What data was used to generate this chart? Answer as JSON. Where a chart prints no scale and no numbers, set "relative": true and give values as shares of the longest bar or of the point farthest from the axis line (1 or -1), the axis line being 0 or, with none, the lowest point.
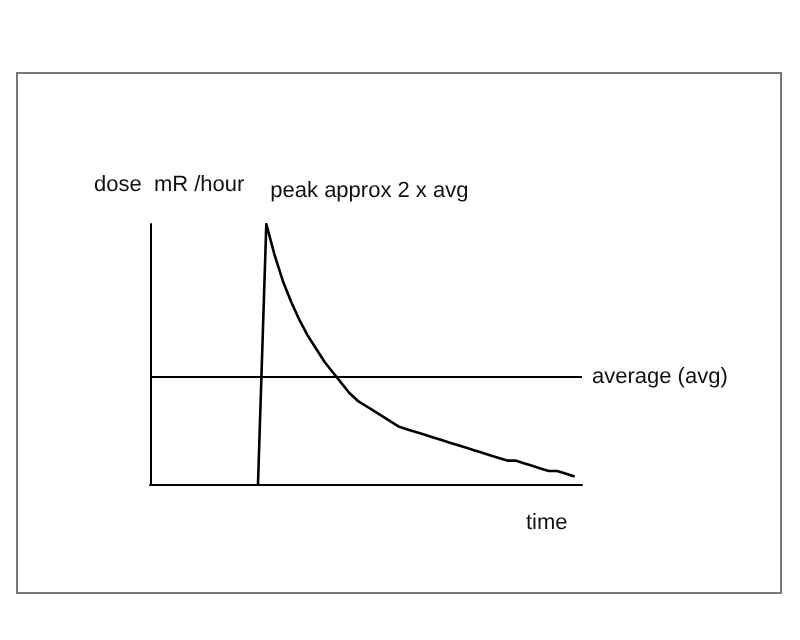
{
  "chart_data": {
    "type": "line",
    "relative": true,
    "xlabel": "time",
    "ylabel": "dose  mR /hour",
    "categories": [
      null,
      null,
      null,
      null,
      null,
      null,
      null,
      null,
      null,
      null,
      null,
      null,
      null,
      null,
      null,
      null,
      null,
      null,
      null,
      null,
      null,
      null,
      null,
      null,
      null,
      null,
      null,
      null,
      null,
      null,
      null,
      null,
      null,
      null,
      null,
      null,
      null,
      null,
      null,
      null,
      null,
      null,
      null,
      null,
      null,
      null,
      null,
      null,
      null,
      null,
      null,
      null,
      null
    ],
    "series": [
      {
        "color": "#000000",
        "values": [
          null,
          null,
          null,
          null,
          null,
          null,
          null,
          null,
          null,
          null,
          null,
          null,
          null,
          0,
          1.0,
          0.88,
          0.78,
          0.7,
          0.63,
          0.57,
          0.52,
          0.47,
          0.43,
          0.39,
          0.35,
          0.32,
          0.3,
          0.28,
          0.26,
          0.24,
          0.22,
          0.21,
          0.2,
          0.19,
          0.18,
          0.17,
          0.16,
          0.15,
          0.14,
          0.13,
          0.12,
          0.11,
          0.1,
          0.09,
          0.09,
          0.08,
          0.07,
          0.06,
          0.05,
          0.05,
          0.04,
          0.03,
          null
        ]
      }
    ],
    "ref_lines": [
      {
        "axis": "y",
        "value": 0.41,
        "label": "average (avg)"
      }
    ],
    "annotations": [
      "peak approx 2 x avg"
    ],
    "grid": false,
    "marker": "none",
    "line_style": "solid"
  }
}
